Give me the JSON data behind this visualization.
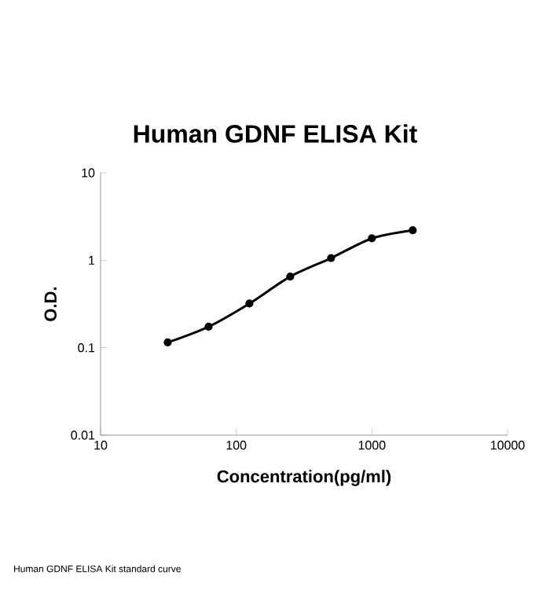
{
  "chart_data": {
    "type": "line",
    "title": "Human GDNF ELISA Kit",
    "xlabel": "Concentration(pg/ml)",
    "ylabel": "O.D.",
    "annotations": [
      "Human GDNF ELISA Kit standard curve"
    ],
    "x": [
      31.25,
      62.5,
      125,
      250,
      500,
      1000,
      2000
    ],
    "series": [
      {
        "color": "#000000",
        "values": [
          0.115,
          0.174,
          0.32,
          0.65,
          1.06,
          1.78,
          2.2
        ]
      }
    ],
    "log": "xy",
    "xlim": [
      10,
      10000
    ],
    "ylim": [
      0.01,
      10
    ],
    "xticks": [
      10,
      100,
      1000,
      10000
    ],
    "yticks": [
      0.01,
      0.1,
      1,
      10
    ],
    "marker": "circle",
    "line_style": "solid",
    "grid": false
  }
}
